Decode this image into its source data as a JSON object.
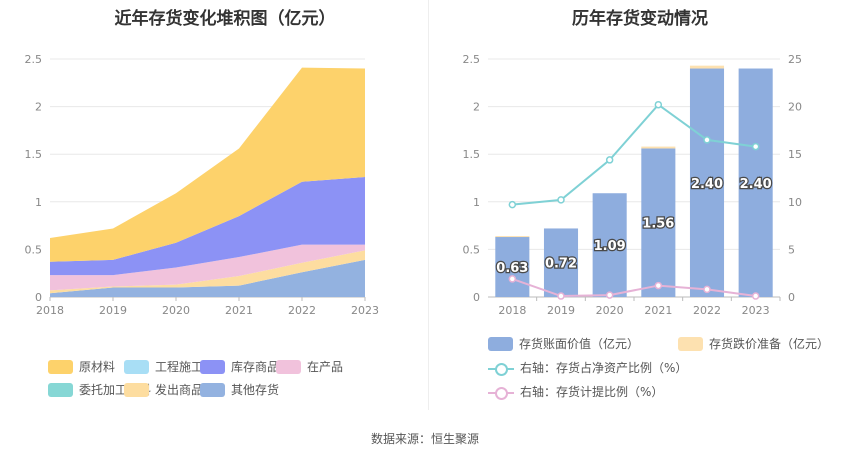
{
  "titles": {
    "left": "近年存货变化堆积图（亿元）",
    "right": "历年存货变动情况"
  },
  "source": "数据来源：恒生聚源",
  "chart_data": [
    {
      "type": "area",
      "title": "近年存货变化堆积图（亿元）",
      "categories": [
        "2018",
        "2019",
        "2020",
        "2021",
        "2022",
        "2023"
      ],
      "ylim": [
        0,
        2.5
      ],
      "yticks": [
        "0",
        "0.5",
        "1",
        "1.5",
        "2",
        "2.5"
      ],
      "grid": true,
      "legend_position": "bottom",
      "series": [
        {
          "name": "其他存货",
          "color": "#93b2e0",
          "values": [
            0.04,
            0.1,
            0.1,
            0.12,
            0.26,
            0.39
          ]
        },
        {
          "name": "发出商品",
          "color": "#fddda0",
          "values": [
            0.03,
            0.01,
            0.03,
            0.1,
            0.1,
            0.1
          ]
        },
        {
          "name": "委托加工材料",
          "color": "#86d7d5",
          "values": [
            0.0,
            0.0,
            0.0,
            0.0,
            0.0,
            0.0
          ]
        },
        {
          "name": "在产品",
          "color": "#f1c2dc",
          "values": [
            0.16,
            0.12,
            0.18,
            0.2,
            0.19,
            0.06
          ]
        },
        {
          "name": "库存商品",
          "color": "#8c92f5",
          "values": [
            0.14,
            0.16,
            0.26,
            0.43,
            0.66,
            0.71
          ]
        },
        {
          "name": "工程施工",
          "color": "#a8def5",
          "values": [
            0.0,
            0.0,
            0.0,
            0.0,
            0.0,
            0.0
          ]
        },
        {
          "name": "原材料",
          "color": "#fdd26b",
          "values": [
            0.25,
            0.33,
            0.52,
            0.71,
            1.2,
            1.14
          ]
        }
      ],
      "legend_order": [
        "原材料",
        "工程施工",
        "库存商品",
        "在产品",
        "委托加工材料",
        "发出商品",
        "其他存货"
      ]
    },
    {
      "type": "bar",
      "title": "历年存货变动情况",
      "categories": [
        "2018",
        "2019",
        "2020",
        "2021",
        "2022",
        "2023"
      ],
      "ylim": [
        0,
        2.5
      ],
      "yticks": [
        "0",
        "0.5",
        "1",
        "1.5",
        "2",
        "2.5"
      ],
      "y2lim": [
        0,
        25
      ],
      "y2ticks": [
        "0",
        "5",
        "10",
        "15",
        "20",
        "25"
      ],
      "grid": true,
      "legend_position": "bottom",
      "series": [
        {
          "name": "存货账面价值（亿元）",
          "kind": "bar",
          "color": "#8eadde",
          "values": [
            0.63,
            0.72,
            1.09,
            1.56,
            2.4,
            2.4
          ],
          "labels": [
            "0.63",
            "0.72",
            "1.09",
            "1.56",
            "2.40",
            "2.40"
          ]
        },
        {
          "name": "存货跌价准备（亿元）",
          "kind": "bar",
          "color": "#fde1b0",
          "values": [
            0.01,
            0.0,
            0.0,
            0.02,
            0.03,
            0.0
          ]
        },
        {
          "name": "右轴：存货占净资产比例（%）",
          "kind": "line",
          "axis": "right",
          "color": "#7fd1d5",
          "values": [
            9.7,
            10.2,
            14.4,
            20.2,
            16.5,
            15.8
          ]
        },
        {
          "name": "右轴：存货计提比例（%）",
          "kind": "line",
          "axis": "right",
          "color": "#e6b2d6",
          "values": [
            1.9,
            0.1,
            0.2,
            1.2,
            0.8,
            0.1
          ]
        }
      ]
    }
  ]
}
